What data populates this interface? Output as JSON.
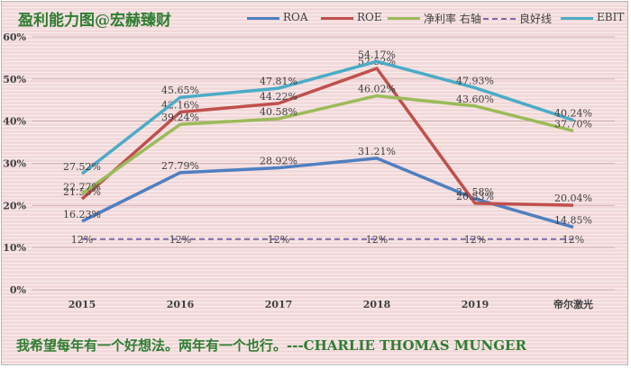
{
  "title": "盈利能力图@宏赫臻财",
  "quote": "我希望每年有一个好想法。两年有一个也行。---CHARLIE THOMAS MUNGER",
  "colors": {
    "ROA": "#4f7fc0",
    "ROE": "#c0504d",
    "NET": "#9bbb59",
    "GOOD": "#7f67a8",
    "EBIT": "#4bacc6"
  },
  "chart_data": {
    "type": "line",
    "categories": [
      "2015",
      "2016",
      "2017",
      "2018",
      "2019",
      "帝尔激光"
    ],
    "ylim": [
      0,
      60
    ],
    "yticks": [
      "0%",
      "10%",
      "20%",
      "30%",
      "40%",
      "50%",
      "60%"
    ],
    "grid": true,
    "legend_position": "top",
    "series": [
      {
        "key": "ROA",
        "name": "ROA",
        "values": [
          16.23,
          27.79,
          28.92,
          31.21,
          21.58,
          14.85
        ],
        "labels": [
          "16.23%",
          "27.79%",
          "28.92%",
          "31.21%",
          "21.58%",
          "14.85%"
        ]
      },
      {
        "key": "ROE",
        "name": "ROE",
        "values": [
          21.55,
          42.16,
          44.22,
          52.52,
          20.53,
          20.04
        ],
        "labels": [
          "21.55%",
          "42.16%",
          "44.22%",
          "52.52%",
          "20.53%",
          "20.04%"
        ]
      },
      {
        "key": "NET",
        "name": "净利率 右轴",
        "values": [
          22.77,
          39.24,
          40.58,
          46.02,
          43.6,
          37.7
        ],
        "labels": [
          "22.77%",
          "39.24%",
          "40.58%",
          "46.02%",
          "43.60%",
          "37.70%"
        ]
      },
      {
        "key": "GOOD",
        "name": "良好线",
        "dashed": true,
        "values": [
          12,
          12,
          12,
          12,
          12,
          12
        ],
        "labels": [
          "12%",
          "12%",
          "12%",
          "12%",
          "12%",
          "12%"
        ]
      },
      {
        "key": "EBIT",
        "name": "EBIT",
        "values": [
          27.52,
          45.65,
          47.81,
          54.17,
          47.93,
          40.24
        ],
        "labels": [
          "27.52%",
          "45.65%",
          "47.81%",
          "54.17%",
          "47.93%",
          "40.24%"
        ]
      }
    ]
  }
}
